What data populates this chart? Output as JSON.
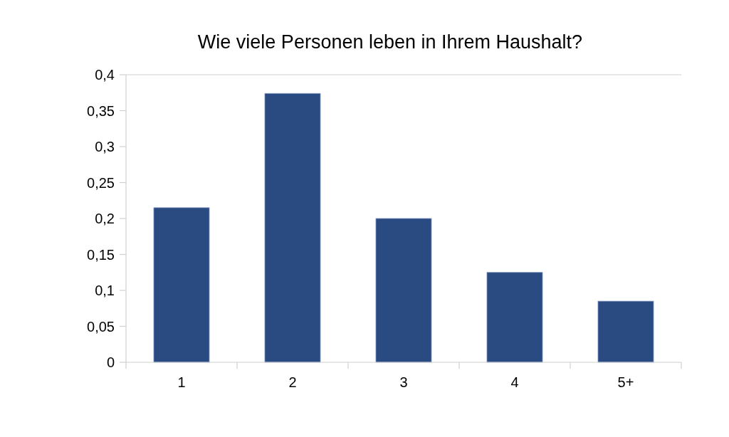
{
  "chart_data": {
    "type": "bar",
    "title": "Wie viele Personen leben in Ihrem Haushalt?",
    "categories": [
      "1",
      "2",
      "3",
      "4",
      "5+"
    ],
    "values": [
      0.215,
      0.374,
      0.2,
      0.125,
      0.085
    ],
    "color": "#2a4a82",
    "ylim": [
      0,
      0.4
    ],
    "yticks": [
      0,
      {
        "value": 0.05,
        "label": "0,05"
      },
      {
        "value": 0.1,
        "label": "0,1"
      },
      {
        "value": 0.15,
        "label": "0,15"
      },
      {
        "value": 0.2,
        "label": "0,2"
      },
      {
        "value": 0.25,
        "label": "0,25"
      },
      {
        "value": 0.3,
        "label": "0,3"
      },
      {
        "value": 0.35,
        "label": "0,35"
      },
      {
        "value": 0.4,
        "label": "0,4"
      }
    ],
    "grid": false
  }
}
